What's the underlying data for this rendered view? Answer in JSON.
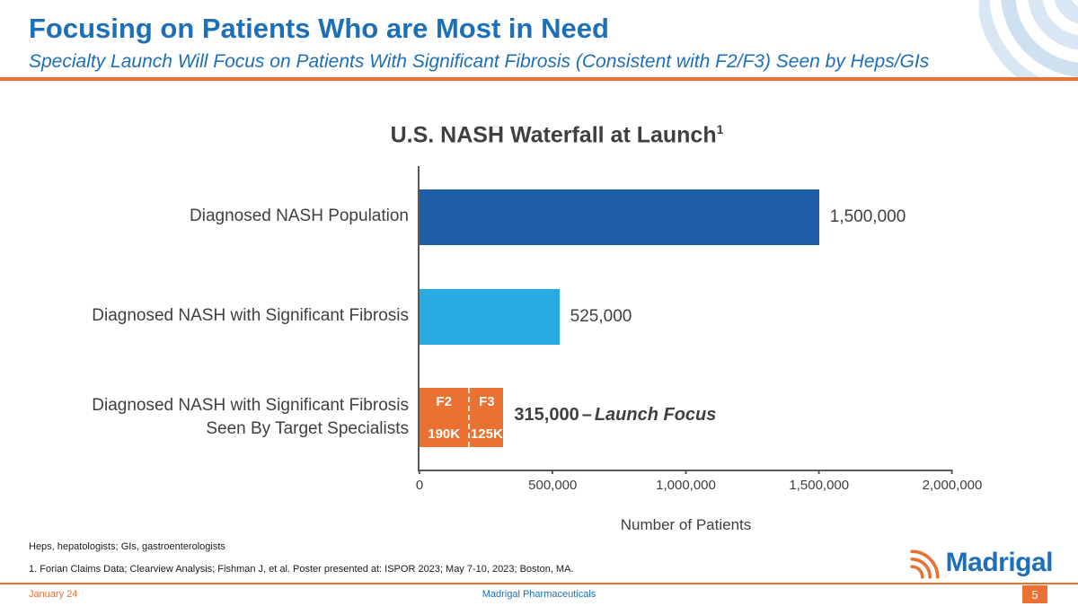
{
  "slide": {
    "title": "Focusing on Patients Who are Most in Need",
    "subtitle": "Specialty Launch Will Focus on Patients With Significant Fibrosis (Consistent with F2/F3) Seen by Heps/GIs"
  },
  "colors": {
    "brand_blue": "#1D6FB8",
    "brand_orange": "#E97132",
    "bar_dark_blue": "#1F5FA8",
    "bar_light_blue": "#29ABE2",
    "bar_orange": "#E97132",
    "text_gray": "#3F3F3F"
  },
  "chart_data": {
    "type": "bar",
    "orientation": "horizontal",
    "title": "U.S. NASH Waterfall at Launch",
    "title_footnote_marker": "1",
    "xlabel": "Number of Patients",
    "xlim": [
      0,
      2000000
    ],
    "x_ticks": [
      "0",
      "500,000",
      "1,000,000",
      "1,500,000",
      "2,000,000"
    ],
    "grid": false,
    "legend": false,
    "categories": [
      "Diagnosed NASH Population",
      "Diagnosed NASH with Significant Fibrosis",
      "Diagnosed NASH with Significant Fibrosis Seen By Target Specialists"
    ],
    "row_labels": [
      {
        "line1": "Diagnosed NASH Population",
        "line2": ""
      },
      {
        "line1": "Diagnosed NASH with Significant Fibrosis",
        "line2": ""
      },
      {
        "line1": "Diagnosed NASH with Significant Fibrosis",
        "line2": "Seen By Target Specialists"
      }
    ],
    "values": [
      1500000,
      525000,
      315000
    ],
    "bar_colors": [
      "#1F5FA8",
      "#29ABE2",
      "#E97132"
    ],
    "value_labels": [
      "1,500,000",
      "525,000",
      "315,000"
    ],
    "launch_separator": "–",
    "launch_focus": "Launch Focus",
    "segments": [
      {
        "label": "F2",
        "value": 190000,
        "value_label": "190K"
      },
      {
        "label": "F3",
        "value": 125000,
        "value_label": "125K"
      }
    ]
  },
  "footnotes": {
    "line1": "Heps, hepatologists; GIs, gastroenterologists",
    "line2": "1. Forian Claims Data; Clearview Analysis; Fishman J, et al. Poster presented at: ISPOR 2023; May 7-10, 2023; Boston, MA."
  },
  "logo": {
    "wordmark": "Madrigal"
  },
  "footer": {
    "date": "January 24",
    "company": "Madrigal Pharmaceuticals",
    "page": "5"
  }
}
